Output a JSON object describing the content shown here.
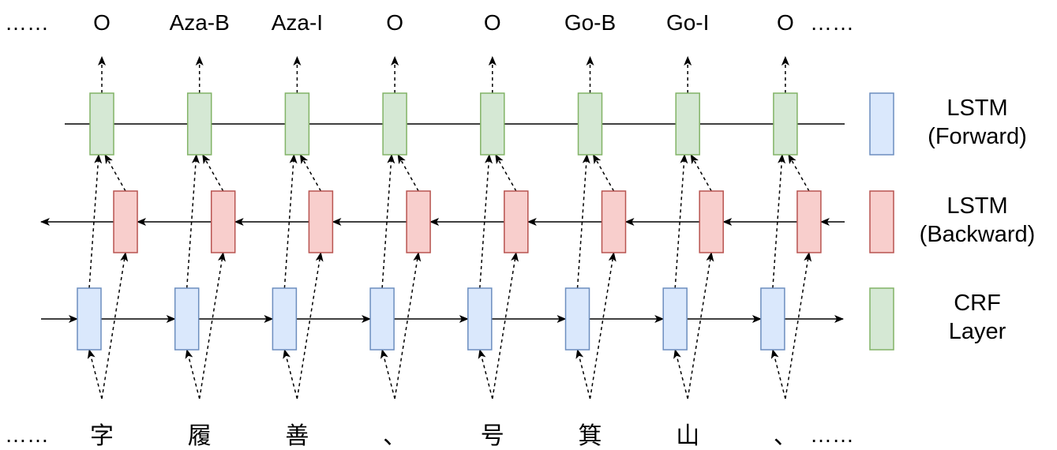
{
  "colors": {
    "forward_fill": "#dae8fc",
    "forward_stroke": "#6c8ebf",
    "backward_fill": "#f8cecc",
    "backward_stroke": "#b85450",
    "crf_fill": "#d5e8d4",
    "crf_stroke": "#82b366",
    "line": "#000000"
  },
  "ellipsis": "……",
  "output_labels": [
    "O",
    "Aza-B",
    "Aza-I",
    "O",
    "O",
    "Go-B",
    "Go-I",
    "O"
  ],
  "input_tokens": [
    "字",
    "履",
    "善",
    "、",
    "号",
    "箕",
    "山",
    "、"
  ],
  "legend": [
    {
      "id": "forward",
      "lines": [
        "LSTM",
        "(Forward)"
      ]
    },
    {
      "id": "backward",
      "lines": [
        "LSTM",
        "(Backward)"
      ]
    },
    {
      "id": "crf",
      "lines": [
        "CRF",
        "Layer"
      ]
    }
  ]
}
